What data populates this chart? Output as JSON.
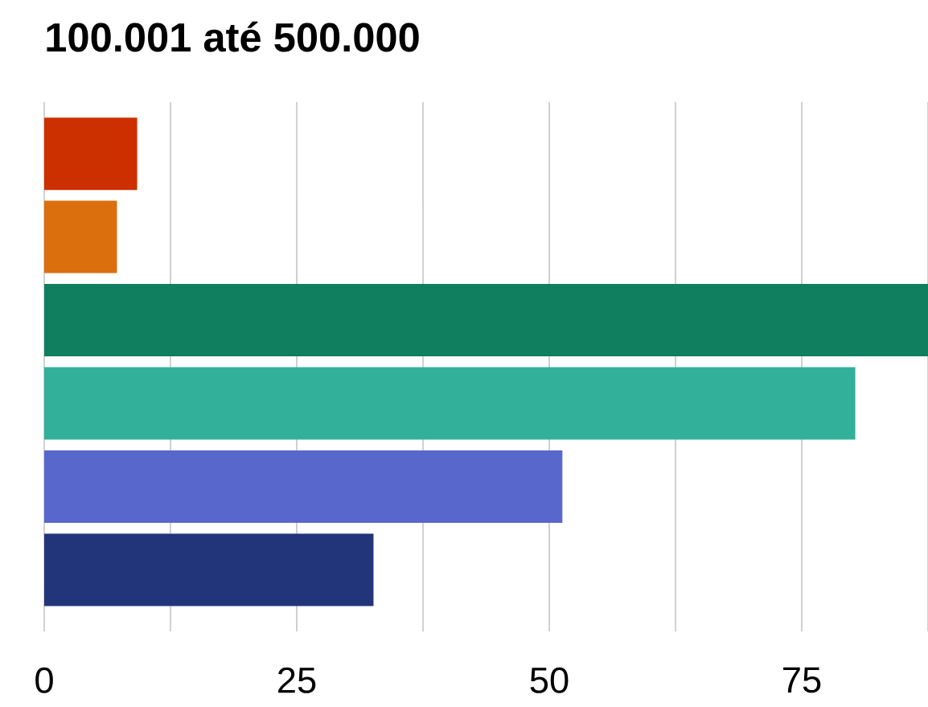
{
  "chart_data": {
    "type": "bar",
    "orientation": "horizontal",
    "title": "100.001 até 500.000",
    "categories": [
      null,
      null,
      null,
      null,
      null,
      null
    ],
    "values": [
      9.2,
      7.2,
      87.5,
      80.3,
      51.3,
      32.6
    ],
    "colors": [
      "#cc3000",
      "#db6e0d",
      "#0f7f5f",
      "#33b09a",
      "#5867cc",
      "#22357b"
    ],
    "xlim": [
      0,
      87.5
    ],
    "xticks": [
      0,
      {
        "value": 12.5,
        "label": null
      },
      25,
      {
        "value": 37.5,
        "label": null
      },
      50,
      {
        "value": 62.5,
        "label": null
      },
      75,
      {
        "value": 87.5,
        "label": null
      }
    ],
    "grid": "x"
  }
}
